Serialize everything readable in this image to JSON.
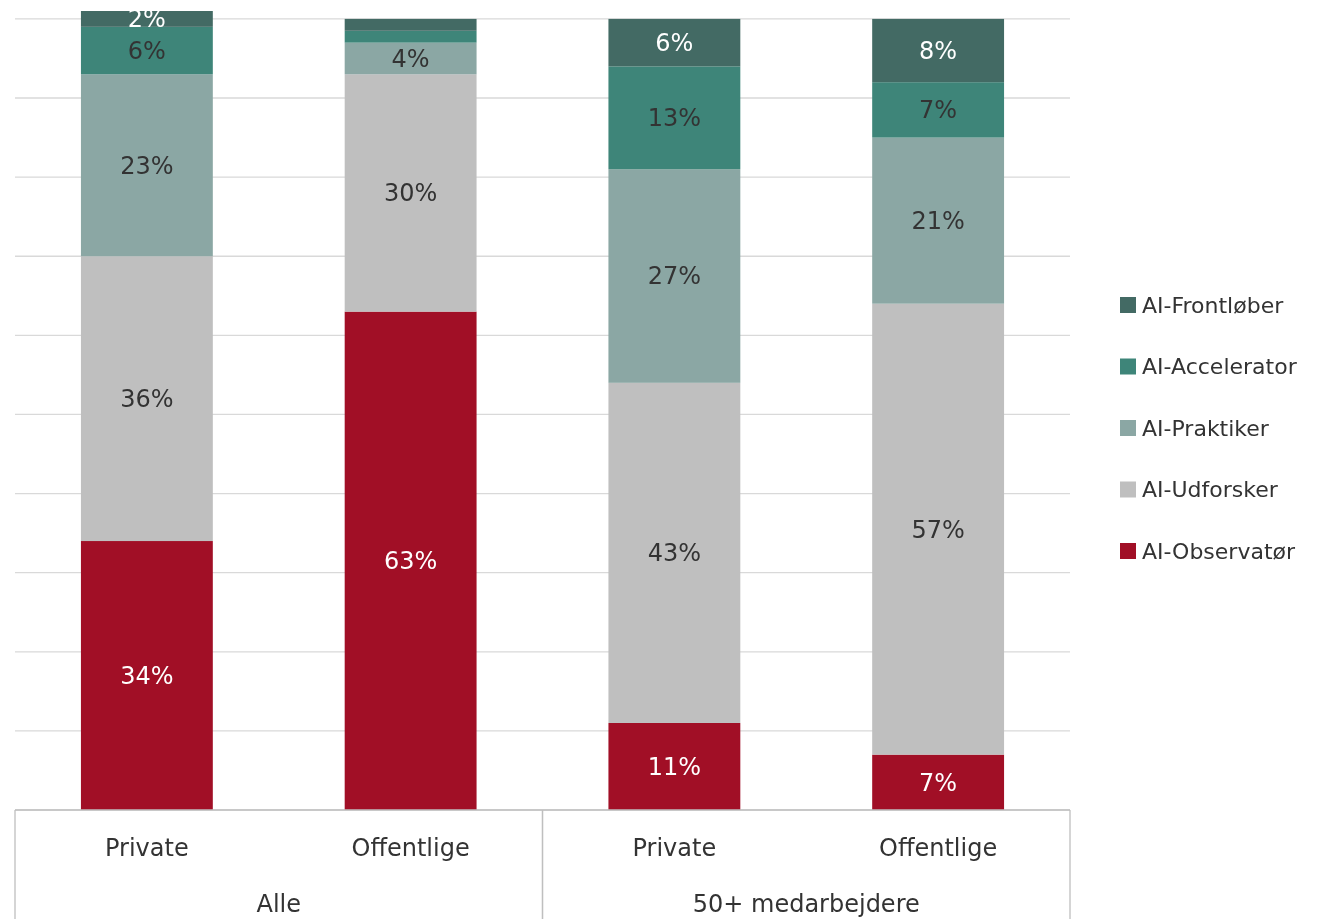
{
  "chart_data": {
    "type": "bar",
    "stacked": true,
    "categories": [
      "Private",
      "Offentlige",
      "Private",
      "Offentlige"
    ],
    "annotations": [
      "Alle",
      "50+ medarbejdere"
    ],
    "series": [
      {
        "name": "AI-Observatør",
        "color": "#a10f26",
        "values": [
          34,
          63,
          11,
          7
        ],
        "value_labels": [
          "34%",
          "63%",
          "11%",
          "7%"
        ]
      },
      {
        "name": "AI-Udforsker",
        "color": "#bfbfbf",
        "values": [
          36,
          30,
          43,
          57
        ],
        "value_labels": [
          "36%",
          "30%",
          "43%",
          "57%"
        ]
      },
      {
        "name": "AI-Praktiker",
        "color": "#8ba7a4",
        "values": [
          23,
          4,
          27,
          21
        ],
        "value_labels": [
          "23%",
          "4%",
          "27%",
          "21%"
        ]
      },
      {
        "name": "AI-Accelerator",
        "color": "#3e8579",
        "values": [
          6,
          1.5,
          13,
          7
        ],
        "value_labels": [
          "6%",
          null,
          "13%",
          "7%"
        ]
      },
      {
        "name": "AI-Frontløber",
        "color": "#436a64",
        "values": [
          2,
          1.5,
          6,
          8
        ],
        "value_labels": [
          "2%",
          null,
          "6%",
          "8%"
        ]
      }
    ],
    "ylim": [
      0,
      101
    ],
    "yticks": [
      {
        "value": 0,
        "label": null
      },
      {
        "value": 10,
        "label": null
      },
      {
        "value": 20,
        "label": null
      },
      {
        "value": 30,
        "label": null
      },
      {
        "value": 40,
        "label": null
      },
      {
        "value": 50,
        "label": null
      },
      {
        "value": 60,
        "label": null
      },
      {
        "value": 70,
        "label": null
      },
      {
        "value": 80,
        "label": null
      },
      {
        "value": 90,
        "label": null
      },
      {
        "value": 100,
        "label": null
      }
    ],
    "tick_labels": "x",
    "grid": "y",
    "legend": "right"
  }
}
